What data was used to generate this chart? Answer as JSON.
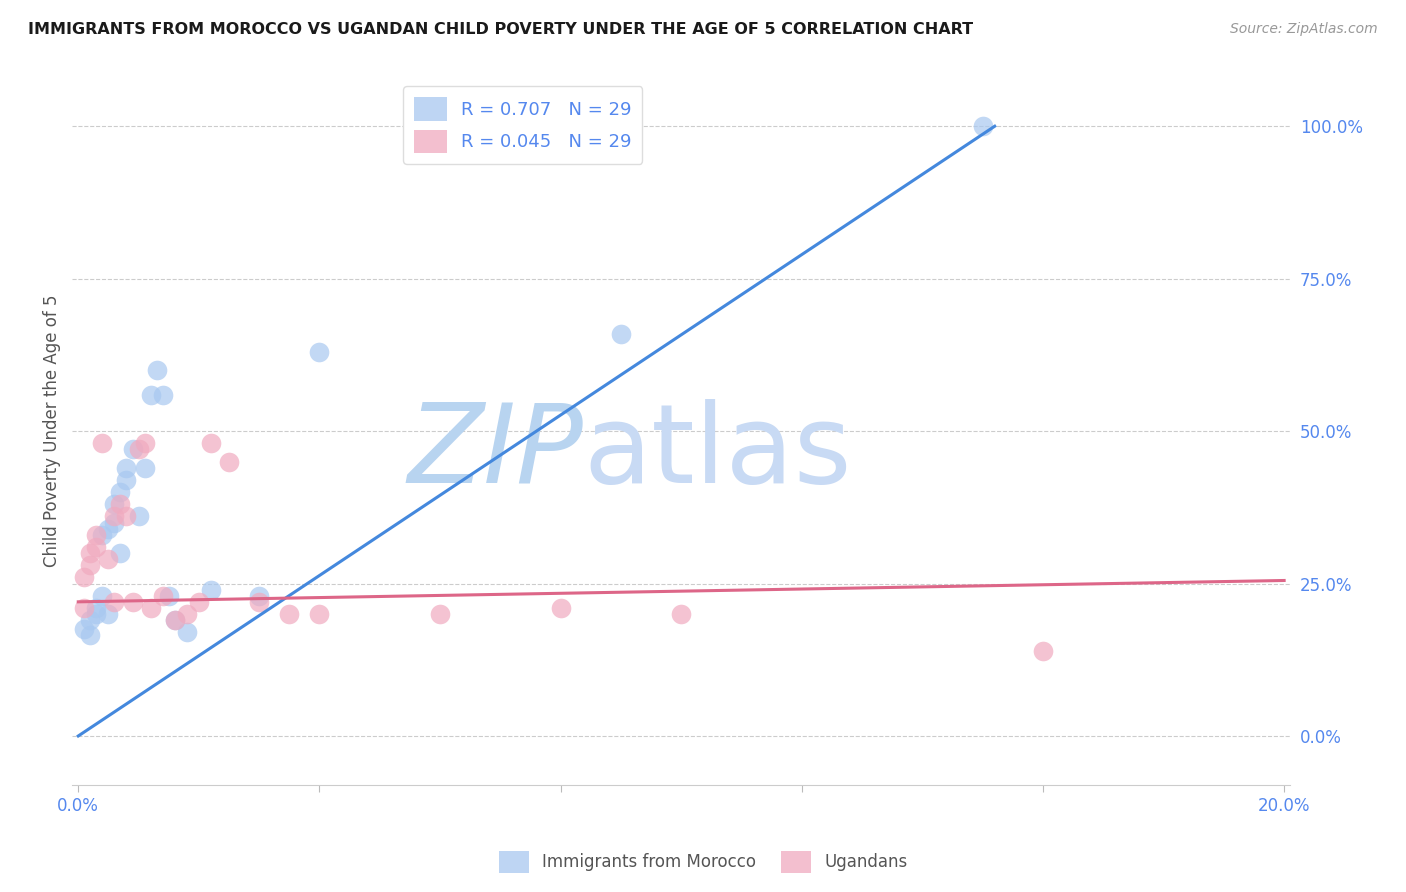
{
  "title": "IMMIGRANTS FROM MOROCCO VS UGANDAN CHILD POVERTY UNDER THE AGE OF 5 CORRELATION CHART",
  "source": "Source: ZipAtlas.com",
  "ylabel": "Child Poverty Under the Age of 5",
  "right_ytick_labels": [
    "0.0%",
    "25.0%",
    "50.0%",
    "75.0%",
    "100.0%"
  ],
  "right_ytick_values": [
    0.0,
    0.25,
    0.5,
    0.75,
    1.0
  ],
  "xlim": [
    0.0,
    0.2
  ],
  "ylim": [
    -0.08,
    1.08
  ],
  "title_color": "#1a1a1a",
  "source_color": "#999999",
  "axis_tick_color": "#5588ee",
  "watermark_zip": "ZIP",
  "watermark_atlas": "atlas",
  "watermark_color": "#cce0f8",
  "legend_R1": "R = 0.707",
  "legend_N1": "N = 29",
  "legend_R2": "R = 0.045",
  "legend_N2": "N = 29",
  "blue_color": "#a8c8f0",
  "pink_color": "#f0aabf",
  "blue_line_color": "#4488dd",
  "pink_line_color": "#dd6688",
  "blue_scatter_x": [
    0.001,
    0.002,
    0.002,
    0.003,
    0.003,
    0.004,
    0.004,
    0.005,
    0.005,
    0.006,
    0.006,
    0.007,
    0.007,
    0.008,
    0.008,
    0.009,
    0.01,
    0.011,
    0.012,
    0.013,
    0.014,
    0.015,
    0.016,
    0.018,
    0.022,
    0.03,
    0.04,
    0.09,
    0.15
  ],
  "blue_scatter_y": [
    0.175,
    0.165,
    0.19,
    0.21,
    0.2,
    0.23,
    0.33,
    0.34,
    0.2,
    0.35,
    0.38,
    0.3,
    0.4,
    0.42,
    0.44,
    0.47,
    0.36,
    0.44,
    0.56,
    0.6,
    0.56,
    0.23,
    0.19,
    0.17,
    0.24,
    0.23,
    0.63,
    0.66,
    1.0
  ],
  "pink_scatter_x": [
    0.001,
    0.001,
    0.002,
    0.002,
    0.003,
    0.003,
    0.004,
    0.005,
    0.006,
    0.006,
    0.007,
    0.008,
    0.009,
    0.01,
    0.011,
    0.012,
    0.014,
    0.016,
    0.018,
    0.02,
    0.022,
    0.025,
    0.03,
    0.035,
    0.04,
    0.06,
    0.08,
    0.1,
    0.16
  ],
  "pink_scatter_y": [
    0.21,
    0.26,
    0.28,
    0.3,
    0.31,
    0.33,
    0.48,
    0.29,
    0.22,
    0.36,
    0.38,
    0.36,
    0.22,
    0.47,
    0.48,
    0.21,
    0.23,
    0.19,
    0.2,
    0.22,
    0.48,
    0.45,
    0.22,
    0.2,
    0.2,
    0.2,
    0.21,
    0.2,
    0.14
  ],
  "blue_line_x0": 0.0,
  "blue_line_y0": 0.0,
  "blue_line_x1": 0.152,
  "blue_line_y1": 1.0,
  "pink_line_x0": 0.0,
  "pink_line_y0": 0.22,
  "pink_line_x1": 0.2,
  "pink_line_y1": 0.255
}
